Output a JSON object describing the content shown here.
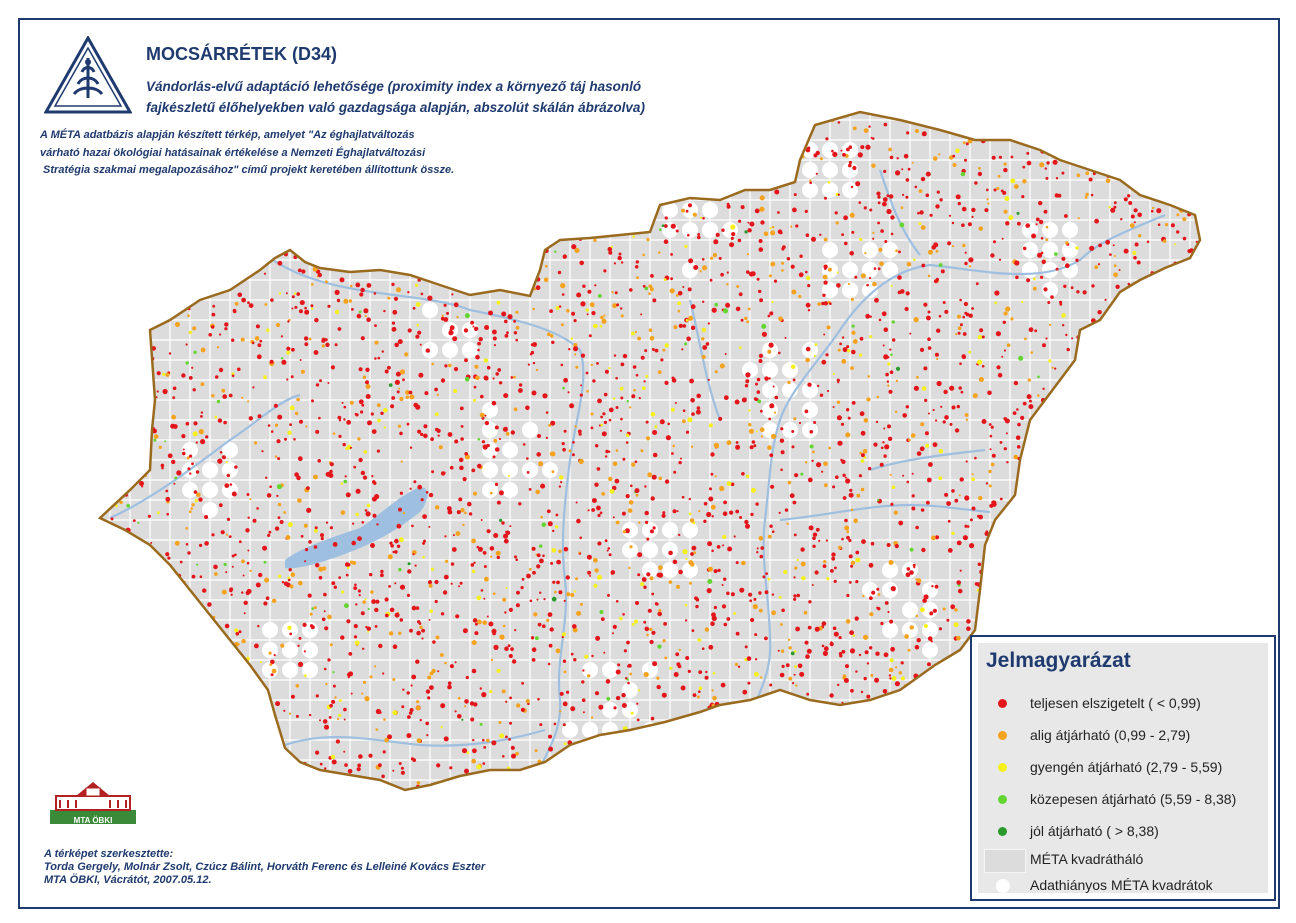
{
  "header": {
    "title": "MOCSÁRRÉTEK (D34)",
    "subtitle_line1": "Vándorlás-elvű adaptáció lehetősége (proximity index a környező táj hasonló",
    "subtitle_line2": "fajkészletű élőhelyekben való gazdagsága alapján, abszolút skálán ábrázolva)",
    "intro_line1": "A MÉTA adatbázis alapján készített térkép, amelyet \"Az éghajlatváltozás",
    "intro_line2": "várható hazai ökológiai hatásainak értékelése a Nemzeti Éghajlatváltozási",
    "intro_line3": " Stratégia szakmai megalapozásához\" című projekt keretében állítottunk össze."
  },
  "logos": {
    "institute_logo_text": "MTA ÖBKI"
  },
  "credits": {
    "line1": "A térképet szerkesztette:",
    "line2": "Torda Gergely, Molnár Zsolt, Czúcz Bálint, Horváth Ferenc és Lelleiné Kovács Eszter",
    "line3": "MTA ÖBKI, Vácrátót, 2007.05.12."
  },
  "legend": {
    "title": "Jelmagyarázat",
    "items": [
      {
        "label": "teljesen elszigetelt ( < 0,99)",
        "color": "#e3161b",
        "type": "dot"
      },
      {
        "label": "alig átjárható (0,99 - 2,79)",
        "color": "#f5a21c",
        "type": "dot"
      },
      {
        "label": "gyengén átjárható (2,79 - 5,59)",
        "color": "#f5f01c",
        "type": "dot"
      },
      {
        "label": "közepesen átjárható (5,59 - 8,38)",
        "color": "#62d62f",
        "type": "dot"
      },
      {
        "label": "jól átjárható ( > 8,38)",
        "color": "#2a9a2a",
        "type": "dot"
      },
      {
        "label": "MÉTA kvadrátháló",
        "color": "#dcdcdc",
        "type": "box"
      },
      {
        "label": "Adathiányos MÉTA kvadrátok",
        "color": "#ffffff",
        "type": "white"
      }
    ]
  },
  "map_colors": {
    "land": "#dcdcdc",
    "border": "#9a6a1e",
    "water": "#9ebfe0",
    "grid": "#ffffff",
    "navy": "#1f3a6e"
  }
}
